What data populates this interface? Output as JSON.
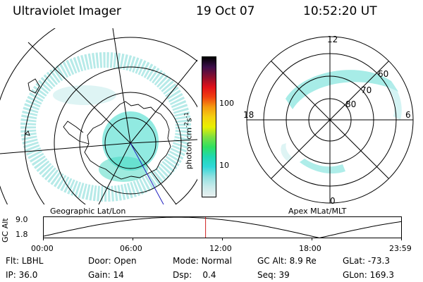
{
  "header": {
    "instrument": "Ultraviolet Imager",
    "date": "19 Oct 07",
    "time": "10:52:20 UT"
  },
  "left_panel": {
    "caption": "Geographic Lat/Lon"
  },
  "right_panel": {
    "caption": "Apex MLat/MLT",
    "mlt_labels": [
      "12",
      "18",
      "6",
      "0"
    ],
    "mlat_labels": [
      "60",
      "70",
      "80"
    ]
  },
  "colorbar": {
    "unit_label": "photon cm",
    "unit_sup1": "-2",
    "unit_mid": "s",
    "unit_sup2": "-1",
    "tick_labels": [
      "100",
      "10"
    ],
    "scale": "log",
    "tick_values": [
      100,
      10
    ],
    "colors": [
      "#000000",
      "#3c0e4a",
      "#8a0f2e",
      "#e0101a",
      "#f04010",
      "#f59a10",
      "#f4d010",
      "#e8f000",
      "#80e040",
      "#30e060",
      "#20d8b0",
      "#30d8d8",
      "#90e0e0",
      "#c8eaea",
      "#e8f0f0"
    ]
  },
  "altitude_plot": {
    "ylabel": "GC Alt",
    "y_ticks": [
      "9.0",
      "1.8"
    ],
    "x_ticks": [
      "00:00",
      "06:00",
      "12:00",
      "18:00",
      "23:59"
    ],
    "ylim": [
      1.8,
      9.0
    ],
    "current_time_hours": 10.87,
    "current_marker_color": "#d02020"
  },
  "status": {
    "row1": [
      {
        "label": "Flt:",
        "value": "LBHL"
      },
      {
        "label": "Door:",
        "value": "Open"
      },
      {
        "label": "Mode:",
        "value": "Normal"
      },
      {
        "label": "GC Alt:",
        "value": "8.9 Re"
      },
      {
        "label": "GLat:",
        "value": "-73.3"
      }
    ],
    "row2": [
      {
        "label": "IP:",
        "value": "36.0"
      },
      {
        "label": "Gain:",
        "value": "14"
      },
      {
        "label": "Dsp:",
        "value": "0.4"
      },
      {
        "label": "Seq:",
        "value": "39"
      },
      {
        "label": "GLon:",
        "value": "169.3"
      }
    ]
  }
}
